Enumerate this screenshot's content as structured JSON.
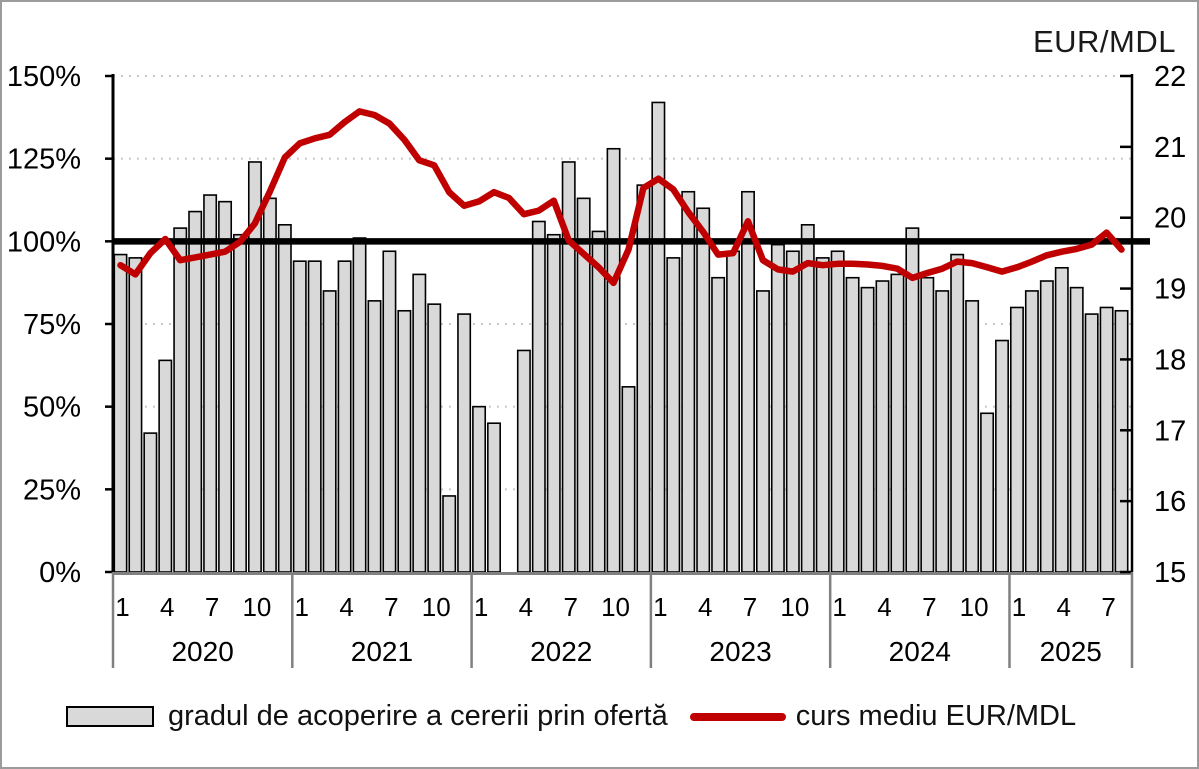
{
  "legend": {
    "bars_label": "gradul de acoperire a cererii prin ofertă",
    "line_label": "curs mediu EUR/MDL"
  },
  "colors": {
    "bar_fill": "#d9d9d9",
    "bar_border": "#000000",
    "line": "#c00000",
    "reference_line": "#000000",
    "gridline": "#c8c8c8",
    "axis_gray": "#808080",
    "axis_black": "#000000"
  },
  "chart_data": {
    "type": "bar+line",
    "title": "",
    "left_axis": {
      "unit": "%",
      "min": 0,
      "max": 150,
      "tick_step": 25,
      "tick_labels": [
        "0%",
        "25%",
        "50%",
        "75%",
        "100%",
        "125%",
        "150%"
      ],
      "gridline_values": [
        25,
        50,
        75,
        125,
        150
      ],
      "reference_line_value": 100,
      "grid": "dotted"
    },
    "right_axis": {
      "title": "EUR/MDL",
      "min": 15,
      "max": 22,
      "tick_labels": [
        "15",
        "16",
        "17",
        "18",
        "19",
        "20",
        "21",
        "22"
      ]
    },
    "x_axis": {
      "month_tick_labels": [
        "1",
        "4",
        "7",
        "10"
      ],
      "note": "monthly data; March 2022 has no bar"
    },
    "legend_position": "bottom",
    "series_names": [
      "gradul de acoperire a cererii prin ofertă",
      "curs mediu EUR/MDL"
    ],
    "years": [
      {
        "label": "2020",
        "months": [
          1,
          2,
          3,
          4,
          5,
          6,
          7,
          8,
          9,
          10,
          11,
          12
        ],
        "coverage_pct": [
          96,
          95,
          42,
          64,
          104,
          109,
          114,
          112,
          102,
          124,
          113,
          105
        ],
        "eur_mdl": [
          19.33,
          19.2,
          19.5,
          19.7,
          19.4,
          19.44,
          19.48,
          19.52,
          19.66,
          19.92,
          20.37,
          20.85
        ]
      },
      {
        "label": "2021",
        "months": [
          1,
          2,
          3,
          4,
          5,
          6,
          7,
          8,
          9,
          10,
          11,
          12
        ],
        "coverage_pct": [
          94,
          94,
          85,
          94,
          101,
          82,
          97,
          79,
          90,
          81,
          23,
          78
        ],
        "eur_mdl": [
          21.05,
          21.12,
          21.17,
          21.35,
          21.5,
          21.45,
          21.33,
          21.1,
          20.81,
          20.74,
          20.36,
          20.17
        ]
      },
      {
        "label": "2022",
        "months": [
          1,
          2,
          3,
          4,
          5,
          6,
          7,
          8,
          9,
          10,
          11,
          12
        ],
        "coverage_pct": [
          50,
          45,
          null,
          67,
          106,
          102,
          124,
          113,
          103,
          128,
          56,
          117
        ],
        "eur_mdl": [
          20.23,
          20.36,
          20.28,
          20.05,
          20.1,
          20.24,
          19.68,
          19.49,
          19.3,
          19.08,
          19.55,
          20.42
        ]
      },
      {
        "label": "2023",
        "months": [
          1,
          2,
          3,
          4,
          5,
          6,
          7,
          8,
          9,
          10,
          11,
          12
        ],
        "coverage_pct": [
          142,
          95,
          115,
          110,
          89,
          97,
          115,
          85,
          99,
          97,
          105,
          95
        ],
        "eur_mdl": [
          20.55,
          20.4,
          20.08,
          19.8,
          19.48,
          19.5,
          19.95,
          19.4,
          19.27,
          19.24,
          19.36,
          19.33
        ]
      },
      {
        "label": "2024",
        "months": [
          1,
          2,
          3,
          4,
          5,
          6,
          7,
          8,
          9,
          10,
          11,
          12
        ],
        "coverage_pct": [
          97,
          89,
          86,
          88,
          90,
          104,
          89,
          85,
          96,
          82,
          48,
          70
        ],
        "eur_mdl": [
          19.35,
          19.35,
          19.34,
          19.32,
          19.28,
          19.15,
          19.22,
          19.28,
          19.38,
          19.36,
          19.3,
          19.24
        ]
      },
      {
        "label": "2025",
        "months": [
          1,
          2,
          3,
          4,
          5,
          6,
          7,
          8
        ],
        "coverage_pct": [
          80,
          85,
          88,
          92,
          86,
          78,
          80,
          79
        ],
        "eur_mdl": [
          19.3,
          19.38,
          19.47,
          19.52,
          19.56,
          19.62,
          19.79,
          19.55
        ]
      }
    ]
  }
}
